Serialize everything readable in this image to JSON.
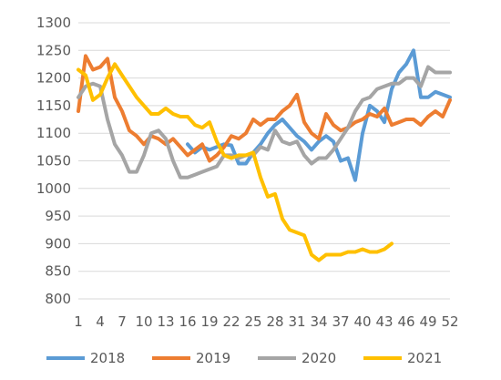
{
  "chart_data": {
    "type": "line",
    "title": "",
    "xlabel": "",
    "ylabel": "",
    "ylim": [
      800,
      1300
    ],
    "yticks": [
      800,
      850,
      900,
      950,
      1000,
      1050,
      1100,
      1150,
      1200,
      1250,
      1300
    ],
    "xticks": [
      1,
      4,
      7,
      10,
      13,
      16,
      19,
      22,
      25,
      28,
      31,
      34,
      37,
      40,
      43,
      46,
      49,
      52
    ],
    "grid": true,
    "legend_position": "bottom",
    "series": [
      {
        "name": "2018",
        "color": "#5b9bd5",
        "x": [
          16,
          17,
          18,
          19,
          20,
          21,
          22,
          23,
          24,
          25,
          26,
          27,
          28,
          29,
          30,
          31,
          32,
          33,
          34,
          35,
          36,
          37,
          38,
          39,
          40,
          41,
          42,
          43,
          44,
          45,
          46,
          47,
          48,
          49,
          50,
          51,
          52
        ],
        "y": [
          1080,
          1065,
          1075,
          1070,
          1075,
          1080,
          1078,
          1045,
          1045,
          1065,
          1080,
          1100,
          1115,
          1125,
          1110,
          1095,
          1085,
          1070,
          1085,
          1095,
          1085,
          1050,
          1055,
          1015,
          1100,
          1150,
          1140,
          1120,
          1180,
          1210,
          1225,
          1250,
          1165,
          1165,
          1175,
          1170,
          1165
        ]
      },
      {
        "name": "2019",
        "color": "#ed7d31",
        "x": [
          1,
          2,
          3,
          4,
          5,
          6,
          7,
          8,
          9,
          10,
          11,
          12,
          13,
          14,
          15,
          16,
          17,
          18,
          19,
          20,
          21,
          22,
          23,
          24,
          25,
          26,
          27,
          28,
          29,
          30,
          31,
          32,
          33,
          34,
          35,
          36,
          37,
          38,
          39,
          40,
          41,
          42,
          43,
          44,
          45,
          46,
          47,
          48,
          49,
          50,
          51,
          52
        ],
        "y": [
          1140,
          1240,
          1215,
          1220,
          1235,
          1165,
          1140,
          1105,
          1095,
          1080,
          1095,
          1090,
          1080,
          1090,
          1075,
          1060,
          1070,
          1080,
          1050,
          1060,
          1075,
          1095,
          1090,
          1100,
          1125,
          1115,
          1125,
          1125,
          1140,
          1150,
          1170,
          1120,
          1100,
          1090,
          1135,
          1115,
          1105,
          1110,
          1120,
          1125,
          1135,
          1130,
          1145,
          1115,
          1120,
          1125,
          1125,
          1115,
          1130,
          1140,
          1130,
          1160
        ]
      },
      {
        "name": "2020",
        "color": "#a5a5a5",
        "x": [
          1,
          2,
          3,
          4,
          5,
          6,
          7,
          8,
          9,
          10,
          11,
          12,
          13,
          14,
          15,
          16,
          17,
          18,
          19,
          20,
          21,
          22,
          23,
          24,
          25,
          26,
          27,
          28,
          29,
          30,
          31,
          32,
          33,
          34,
          35,
          36,
          37,
          38,
          39,
          40,
          41,
          42,
          43,
          44,
          45,
          46,
          47,
          48,
          49,
          50,
          51,
          52
        ],
        "y": [
          1165,
          1185,
          1190,
          1185,
          1125,
          1080,
          1060,
          1030,
          1030,
          1060,
          1100,
          1105,
          1090,
          1050,
          1020,
          1020,
          1025,
          1030,
          1035,
          1040,
          1060,
          1060,
          1055,
          1060,
          1060,
          1075,
          1070,
          1105,
          1085,
          1080,
          1085,
          1060,
          1045,
          1055,
          1055,
          1070,
          1090,
          1110,
          1140,
          1160,
          1165,
          1180,
          1185,
          1190,
          1190,
          1200,
          1200,
          1185,
          1220,
          1210,
          1210,
          1210
        ]
      },
      {
        "name": "2021",
        "color": "#ffc000",
        "x": [
          1,
          2,
          3,
          4,
          5,
          6,
          7,
          8,
          9,
          10,
          11,
          12,
          13,
          14,
          15,
          16,
          17,
          18,
          19,
          20,
          21,
          22,
          23,
          24,
          25,
          26,
          27,
          28,
          29,
          30,
          31,
          32,
          33,
          34,
          35,
          36,
          37,
          38,
          39,
          40,
          41,
          42,
          43,
          44
        ],
        "y": [
          1215,
          1205,
          1160,
          1170,
          1200,
          1225,
          1205,
          1185,
          1165,
          1150,
          1135,
          1135,
          1145,
          1135,
          1130,
          1130,
          1115,
          1110,
          1120,
          1085,
          1060,
          1055,
          1060,
          1060,
          1065,
          1020,
          985,
          990,
          945,
          925,
          920,
          915,
          880,
          870,
          880,
          880,
          880,
          885,
          885,
          890,
          885,
          885,
          890,
          900
        ]
      }
    ]
  }
}
